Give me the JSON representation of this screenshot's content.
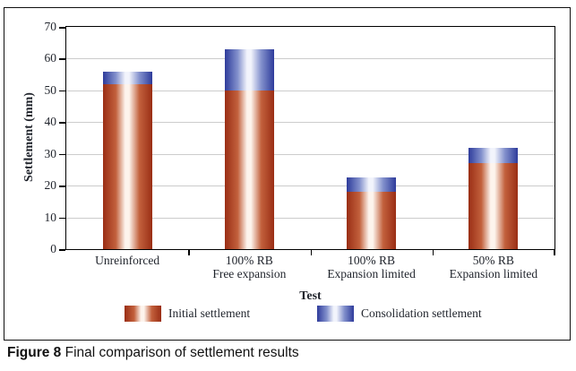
{
  "figure": {
    "caption_label": "Figure 8",
    "caption_text": "Final comparison of settlement results"
  },
  "chart_data": {
    "type": "bar",
    "stacked": true,
    "title": "",
    "xlabel": "Test",
    "ylabel": "Settlement (mm)",
    "ylim": [
      0,
      70
    ],
    "yticks": [
      0,
      10,
      20,
      30,
      40,
      50,
      60,
      70
    ],
    "grid": "horizontal",
    "legend_position": "bottom",
    "categories": [
      "Unreinforced",
      "100% RB Free expansion",
      "100% RB Expansion limited",
      "50% RB Expansion limited"
    ],
    "category_lines": [
      [
        "Unreinforced"
      ],
      [
        "100% RB",
        "Free expansion"
      ],
      [
        "100% RB",
        "Expansion limited"
      ],
      [
        "50% RB",
        "Expansion limited"
      ]
    ],
    "series": [
      {
        "name": "Initial settlement",
        "values": [
          52,
          50,
          18,
          27
        ]
      },
      {
        "name": "Consolidation settlement",
        "values": [
          4,
          13,
          4.5,
          5
        ]
      }
    ],
    "stack_totals": [
      56,
      63,
      22.5,
      32
    ]
  },
  "colors": {
    "initial_edge": "#9A2E15",
    "initial_mid": "#C2603C",
    "initial_highlight": "#FDF4ED",
    "consolidation_edge": "#2E3B9B",
    "consolidation_mid": "#8290CC",
    "consolidation_highlight": "#F2F4FC",
    "gridline": "#CCCCCC",
    "axis": "#000000",
    "text": "#1F232B"
  }
}
